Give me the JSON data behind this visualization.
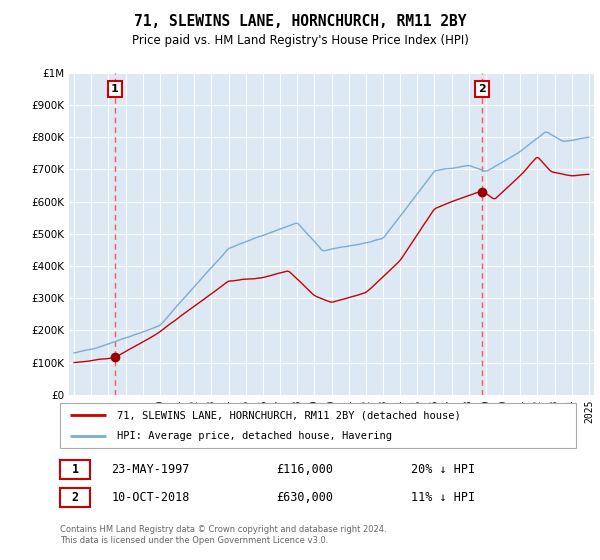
{
  "title": "71, SLEWINS LANE, HORNCHURCH, RM11 2BY",
  "subtitle": "Price paid vs. HM Land Registry's House Price Index (HPI)",
  "sale1_date": "23-MAY-1997",
  "sale1_price": 116000,
  "sale1_label": "20% ↓ HPI",
  "sale1_year": 1997.38,
  "sale2_date": "10-OCT-2018",
  "sale2_price": 630000,
  "sale2_label": "11% ↓ HPI",
  "sale2_year": 2018.77,
  "hpi_color": "#7aadd4",
  "price_color": "#cc0000",
  "marker_color": "#990000",
  "vline_color": "#ff5555",
  "legend_label1": "71, SLEWINS LANE, HORNCHURCH, RM11 2BY (detached house)",
  "legend_label2": "HPI: Average price, detached house, Havering",
  "footnote": "Contains HM Land Registry data © Crown copyright and database right 2024.\nThis data is licensed under the Open Government Licence v3.0.",
  "ylim": [
    0,
    1000000
  ],
  "xlim": [
    1994.7,
    2025.3
  ],
  "plot_background": "#dce8f4"
}
